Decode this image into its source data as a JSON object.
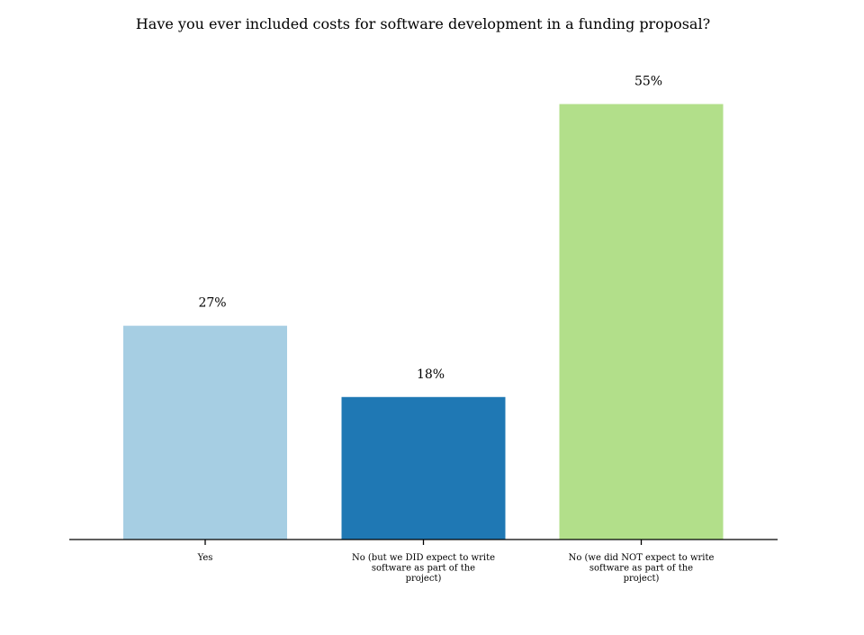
{
  "chart_data": {
    "type": "bar",
    "title": "Have you ever included costs for software development in a funding proposal?",
    "categories": [
      "Yes",
      "No (but we DID expect to write software as part of the project)",
      "No (we did NOT expect to write software as part of the project)"
    ],
    "category_label_lines": [
      [
        "Yes"
      ],
      [
        "No (but we DID expect to write",
        "software as part of the",
        "project)"
      ],
      [
        "No (we did NOT expect to write",
        "software as part of the",
        "project)"
      ]
    ],
    "values": [
      27,
      18,
      55
    ],
    "data_labels": [
      "27%",
      "18%",
      "55%"
    ],
    "colors": [
      "#a6cee3",
      "#1f78b4",
      "#b2df8a"
    ],
    "xlabel": "",
    "ylabel": "",
    "ylim": [
      0,
      62
    ],
    "grid": false,
    "legend": "none"
  }
}
